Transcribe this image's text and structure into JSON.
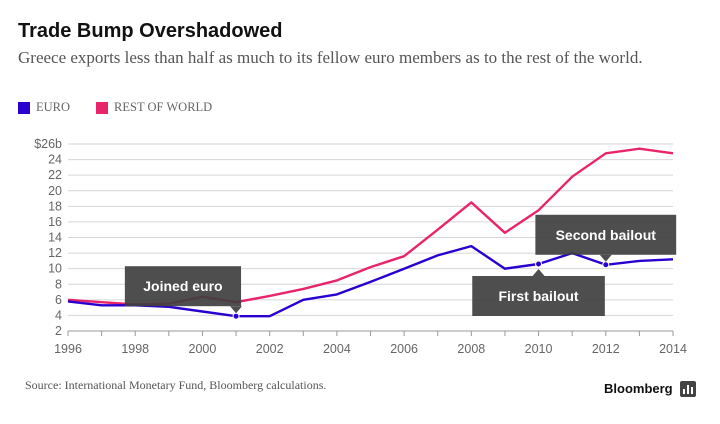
{
  "header": {
    "title": "Trade Bump Overshadowed",
    "subtitle": "Greece exports less than half as much to its fellow euro members as to the rest of the world."
  },
  "footer": {
    "source": "Source: International Monetary Fund, Bloomberg calculations.",
    "brand": "Bloomberg"
  },
  "colors": {
    "euro": "#2a00d1",
    "rest_of_world": "#e8256a",
    "annotation_bg": "#3f3f3f"
  },
  "chart_data": {
    "type": "line",
    "title": "Trade Bump Overshadowed",
    "xlabel": "",
    "ylabel": "",
    "x": [
      1996,
      1997,
      1998,
      1999,
      2000,
      2001,
      2002,
      2003,
      2004,
      2005,
      2006,
      2007,
      2008,
      2009,
      2010,
      2011,
      2012,
      2013,
      2014
    ],
    "xlim": [
      1996,
      2014
    ],
    "ylim": [
      2,
      26
    ],
    "xticks": [
      1996,
      1998,
      2000,
      2002,
      2004,
      2006,
      2008,
      2010,
      2012,
      2014
    ],
    "yticks": [
      {
        "v": 26,
        "label": "$26b"
      },
      {
        "v": 24,
        "label": "24"
      },
      {
        "v": 22,
        "label": "22"
      },
      {
        "v": 20,
        "label": "20"
      },
      {
        "v": 18,
        "label": "18"
      },
      {
        "v": 16,
        "label": "16"
      },
      {
        "v": 14,
        "label": "14"
      },
      {
        "v": 12,
        "label": "12"
      },
      {
        "v": 10,
        "label": "10"
      },
      {
        "v": 8,
        "label": "8"
      },
      {
        "v": 6,
        "label": "6"
      },
      {
        "v": 4,
        "label": "4"
      },
      {
        "v": 2,
        "label": "2"
      }
    ],
    "grid": true,
    "legend": "top-left",
    "series": [
      {
        "name": "EURO",
        "color": "#2a00d1",
        "values": [
          5.8,
          5.3,
          5.3,
          5.1,
          4.5,
          3.9,
          3.9,
          6.0,
          6.7,
          8.3,
          10.0,
          11.7,
          12.9,
          10.0,
          10.6,
          12.0,
          10.5,
          11.0,
          11.2
        ]
      },
      {
        "name": "REST OF WORLD",
        "color": "#e8256a",
        "values": [
          6.0,
          5.7,
          5.4,
          5.5,
          6.4,
          5.7,
          6.5,
          7.4,
          8.5,
          10.2,
          11.6,
          15.0,
          18.5,
          14.6,
          17.5,
          21.8,
          24.8,
          25.4,
          24.8
        ]
      }
    ],
    "annotations": [
      {
        "label": "Joined euro",
        "x": 2001,
        "y": 3.9,
        "pos": "above"
      },
      {
        "label": "First bailout",
        "x": 2010,
        "y": 10.6,
        "pos": "below"
      },
      {
        "label": "Second bailout",
        "x": 2012,
        "y": 10.5,
        "pos": "above"
      }
    ]
  }
}
